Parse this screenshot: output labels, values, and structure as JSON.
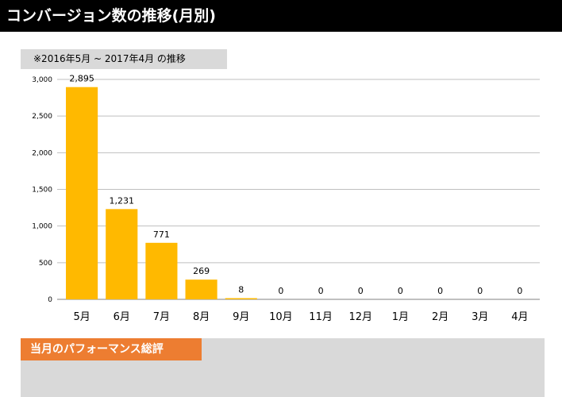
{
  "header": {
    "title": "コンバージョン数の推移(月別)"
  },
  "period_label": "※2016年5月 ~ 2017年4月 の推移",
  "section": {
    "title": "当月のパフォーマンス総評",
    "body": ""
  },
  "colors": {
    "bar": "#ffb900",
    "section_title_bg": "#ed7d31",
    "gray_box": "#d9d9d9",
    "grid": "#bfbfbf"
  },
  "chart_data": {
    "type": "bar",
    "categories": [
      "5月",
      "6月",
      "7月",
      "8月",
      "9月",
      "10月",
      "11月",
      "12月",
      "1月",
      "2月",
      "3月",
      "4月"
    ],
    "values": [
      2895,
      1231,
      771,
      269,
      8,
      0,
      0,
      0,
      0,
      0,
      0,
      0
    ],
    "data_labels": [
      "2,895",
      "1,231",
      "771",
      "269",
      "8",
      "0",
      "0",
      "0",
      "0",
      "0",
      "0",
      "0"
    ],
    "ylim": [
      0,
      3000
    ],
    "yticks": [
      0,
      500,
      1000,
      1500,
      2000,
      2500,
      3000
    ],
    "ytick_labels": [
      "0",
      "500",
      "1,000",
      "1,500",
      "2,000",
      "2,500",
      "3,000"
    ],
    "grid": true,
    "legend": "none"
  }
}
